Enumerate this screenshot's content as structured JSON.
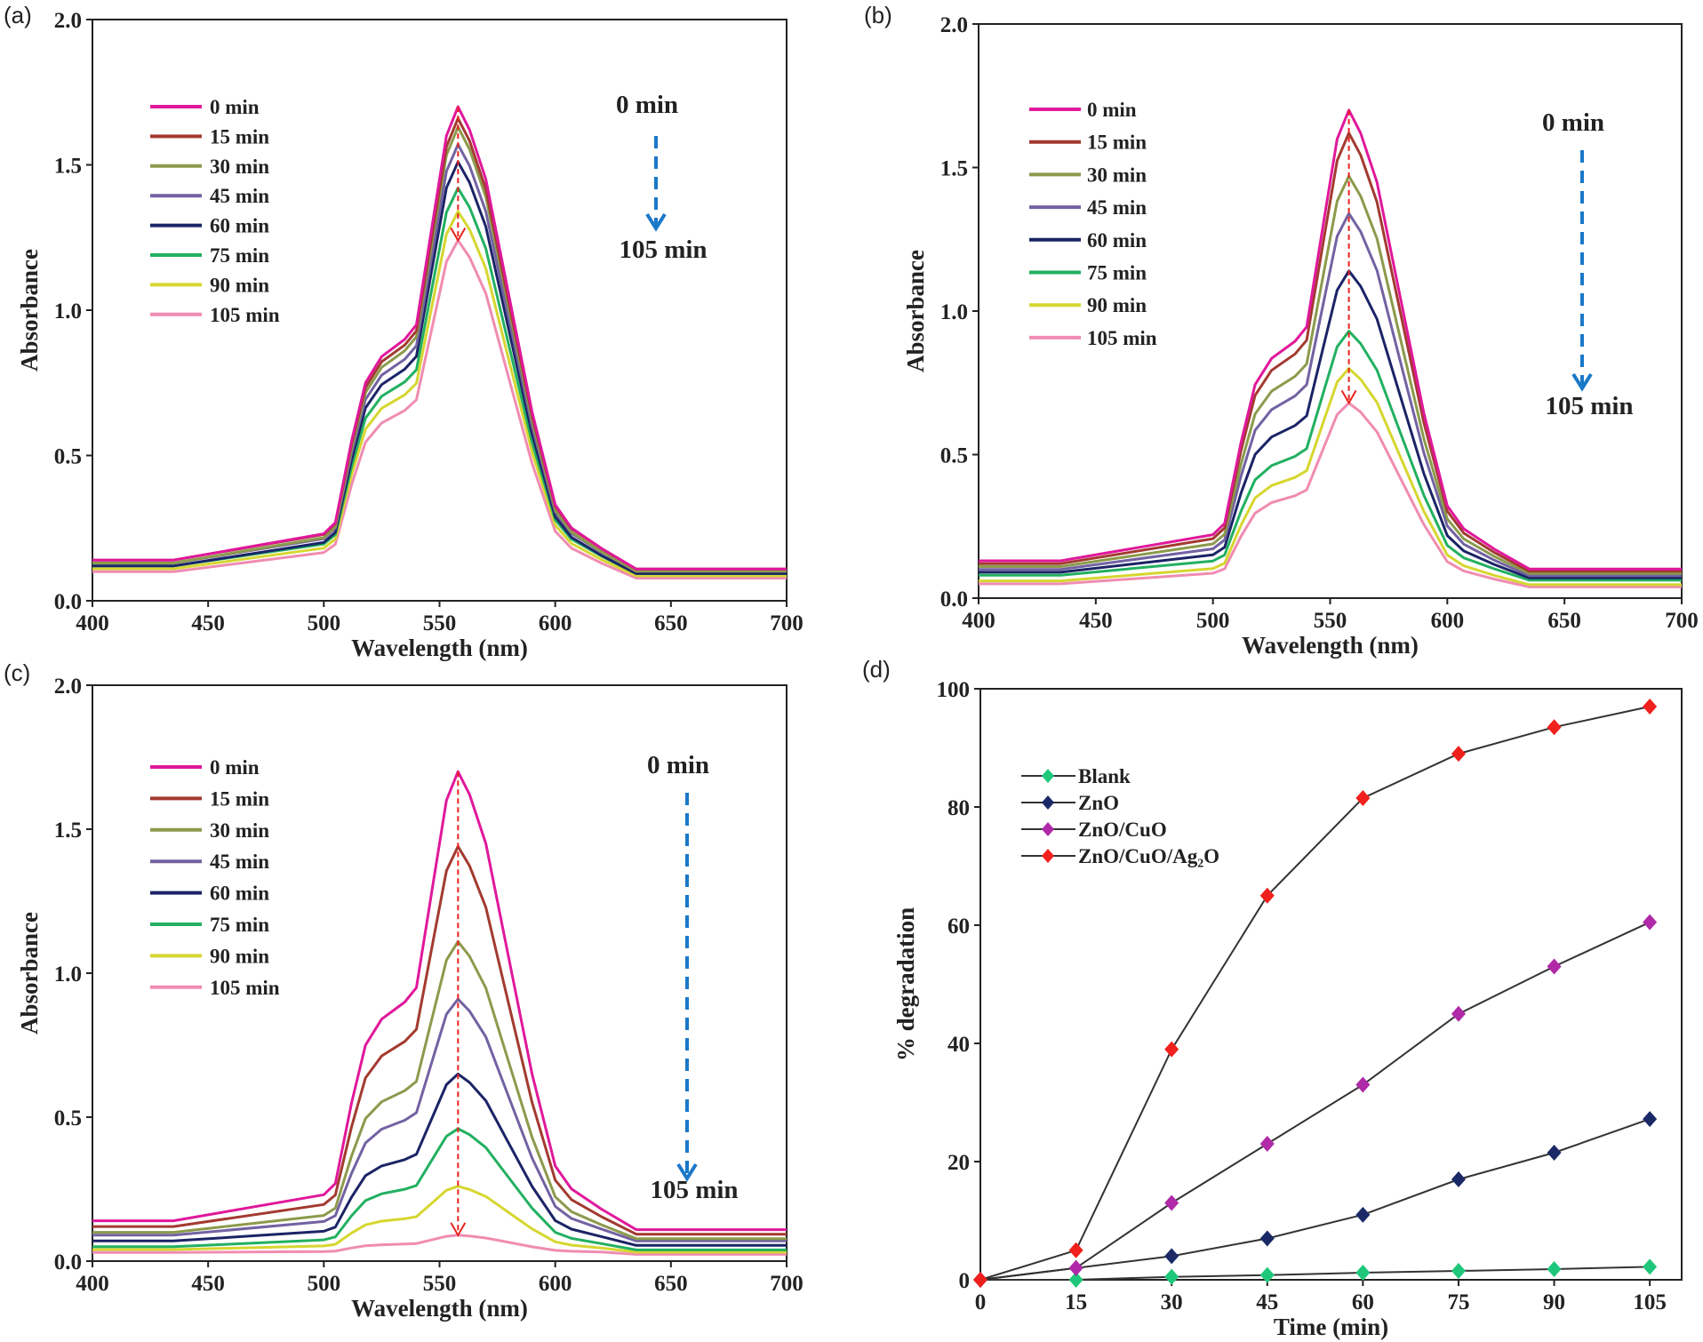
{
  "chart_data": [
    {
      "panel": "(a)",
      "type": "line",
      "xlabel": "Wavelength (nm)",
      "ylabel": "Absorbance",
      "xlim": [
        400,
        700
      ],
      "ylim": [
        0,
        2.0
      ],
      "xticks": [
        400,
        450,
        500,
        550,
        600,
        650,
        700
      ],
      "yticks": [
        "0.0",
        "0.5",
        "1.0",
        "1.5",
        "2.0"
      ],
      "peak_wavelength": 558,
      "annotation_start": "0 min",
      "annotation_end": "105 min",
      "series": [
        {
          "name": "0 min",
          "color": "#e0189a",
          "peak": 1.7,
          "baseline": 0.14
        },
        {
          "name": "15 min",
          "color": "#a33a30",
          "peak": 1.66,
          "baseline": 0.14
        },
        {
          "name": "30 min",
          "color": "#8c9a4c",
          "peak": 1.63,
          "baseline": 0.13
        },
        {
          "name": "45 min",
          "color": "#7262a2",
          "peak": 1.57,
          "baseline": 0.13
        },
        {
          "name": "60 min",
          "color": "#1b2466",
          "peak": 1.51,
          "baseline": 0.12
        },
        {
          "name": "75 min",
          "color": "#22b060",
          "peak": 1.42,
          "baseline": 0.12
        },
        {
          "name": "90 min",
          "color": "#d6d630",
          "peak": 1.34,
          "baseline": 0.11
        },
        {
          "name": "105 min",
          "color": "#f08cb2",
          "peak": 1.24,
          "baseline": 0.1
        }
      ]
    },
    {
      "panel": "(b)",
      "type": "line",
      "xlabel": "Wavelength (nm)",
      "ylabel": "Absorbance",
      "xlim": [
        400,
        700
      ],
      "ylim": [
        0,
        2.0
      ],
      "xticks": [
        400,
        450,
        500,
        550,
        600,
        650,
        700
      ],
      "yticks": [
        "0.0",
        "0.5",
        "1.0",
        "1.5",
        "2.0"
      ],
      "peak_wavelength": 558,
      "annotation_start": "0 min",
      "annotation_end": "105 min",
      "series": [
        {
          "name": "0 min",
          "color": "#e0189a",
          "peak": 1.7,
          "baseline": 0.13
        },
        {
          "name": "15 min",
          "color": "#a33a30",
          "peak": 1.62,
          "baseline": 0.12
        },
        {
          "name": "30 min",
          "color": "#8c9a4c",
          "peak": 1.47,
          "baseline": 0.11
        },
        {
          "name": "45 min",
          "color": "#7262a2",
          "peak": 1.34,
          "baseline": 0.1
        },
        {
          "name": "60 min",
          "color": "#1b2466",
          "peak": 1.14,
          "baseline": 0.09
        },
        {
          "name": "75 min",
          "color": "#22b060",
          "peak": 0.93,
          "baseline": 0.08
        },
        {
          "name": "90 min",
          "color": "#d6d630",
          "peak": 0.8,
          "baseline": 0.06
        },
        {
          "name": "105 min",
          "color": "#f08cb2",
          "peak": 0.68,
          "baseline": 0.05
        }
      ]
    },
    {
      "panel": "(c)",
      "type": "line",
      "xlabel": "Wavelength (nm)",
      "ylabel": "Absorbance",
      "xlim": [
        400,
        700
      ],
      "ylim": [
        0,
        2.0
      ],
      "xticks": [
        400,
        450,
        500,
        550,
        600,
        650,
        700
      ],
      "yticks": [
        "0.0",
        "0.5",
        "1.0",
        "1.5",
        "2.0"
      ],
      "peak_wavelength": 558,
      "annotation_start": "0 min",
      "annotation_end": "105 min",
      "series": [
        {
          "name": "0 min",
          "color": "#e0189a",
          "peak": 1.7,
          "baseline": 0.14
        },
        {
          "name": "15 min",
          "color": "#a33a30",
          "peak": 1.44,
          "baseline": 0.12
        },
        {
          "name": "30 min",
          "color": "#8c9a4c",
          "peak": 1.11,
          "baseline": 0.1
        },
        {
          "name": "45 min",
          "color": "#7262a2",
          "peak": 0.91,
          "baseline": 0.09
        },
        {
          "name": "60 min",
          "color": "#1b2466",
          "peak": 0.65,
          "baseline": 0.07
        },
        {
          "name": "75 min",
          "color": "#22b060",
          "peak": 0.46,
          "baseline": 0.05
        },
        {
          "name": "90 min",
          "color": "#d6d630",
          "peak": 0.26,
          "baseline": 0.04
        },
        {
          "name": "105 min",
          "color": "#f08cb2",
          "peak": 0.09,
          "baseline": 0.03
        }
      ]
    },
    {
      "panel": "(d)",
      "type": "line",
      "xlabel": "Time (min)",
      "ylabel": "% degradation",
      "xlim": [
        0,
        110
      ],
      "ylim": [
        0,
        100
      ],
      "x": [
        0,
        15,
        30,
        45,
        60,
        75,
        90,
        105
      ],
      "xticks": [
        0,
        15,
        30,
        45,
        60,
        75,
        90,
        105
      ],
      "yticks": [
        "0",
        "20",
        "40",
        "60",
        "80",
        "100"
      ],
      "legend_position": "top-left",
      "series": [
        {
          "name": "Blank",
          "color": "#1fc77a",
          "values": [
            0,
            0,
            0.5,
            0.8,
            1.2,
            1.5,
            1.8,
            2.2
          ]
        },
        {
          "name": "ZnO",
          "color": "#1b2a66",
          "values": [
            0,
            2,
            4,
            7,
            11,
            17,
            21.5,
            27.2
          ]
        },
        {
          "name": "ZnO/CuO",
          "color": "#b02aa8",
          "values": [
            0,
            2,
            13,
            23,
            33,
            45,
            53,
            60.5
          ]
        },
        {
          "name": "ZnO/CuO/Ag₂O",
          "color": "#f0201c",
          "values": [
            0,
            5,
            39,
            65,
            81.5,
            89,
            93.5,
            97
          ]
        }
      ]
    }
  ]
}
